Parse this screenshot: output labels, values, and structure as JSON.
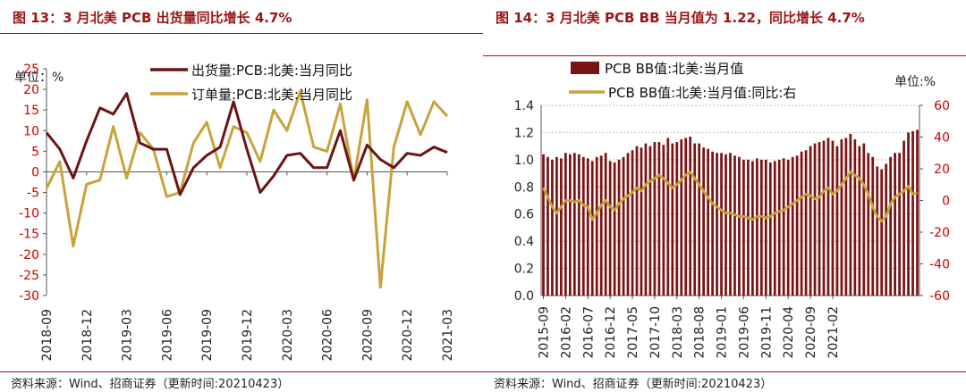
{
  "left": {
    "title": "图 13：3 月北美 PCB 出货量同比增长 4.7%",
    "source": "资料来源：Wind、招商证券（更新时间:20210423）",
    "chart_data": {
      "type": "line",
      "unit_label": "单位：%",
      "ylim": [
        -30,
        25
      ],
      "yticks": [
        "25",
        "20",
        "15",
        "10",
        "5",
        "0",
        "-5",
        "-10",
        "-15",
        "-20",
        "-25",
        "-30"
      ],
      "x": [
        "2018-09",
        "2018-10",
        "2018-11",
        "2018-12",
        "2019-01",
        "2019-02",
        "2019-03",
        "2019-04",
        "2019-05",
        "2019-06",
        "2019-07",
        "2019-08",
        "2019-09",
        "2019-10",
        "2019-11",
        "2019-12",
        "2020-01",
        "2020-02",
        "2020-03",
        "2020-04",
        "2020-05",
        "2020-06",
        "2020-07",
        "2020-08",
        "2020-09",
        "2020-10",
        "2020-11",
        "2020-12",
        "2021-01",
        "2021-02",
        "2021-03"
      ],
      "xtick_labels": [
        "2018-09",
        "2018-12",
        "2019-03",
        "2019-06",
        "2019-09",
        "2019-12",
        "2020-03",
        "2020-06",
        "2020-09",
        "2020-12",
        "2021-03"
      ],
      "series": [
        {
          "name": "出货量:PCB:北美:当月同比",
          "color": "#6b1414",
          "values": [
            9.5,
            5.5,
            -1.5,
            7.5,
            15.5,
            14,
            19,
            7,
            5.5,
            5.5,
            -5.5,
            1,
            4,
            6,
            17,
            5.5,
            -5,
            -1,
            4,
            4.5,
            1,
            1,
            10,
            -2,
            6.5,
            3,
            1,
            4.5,
            4,
            6,
            4.7
          ]
        },
        {
          "name": "订单量:PCB:北美:当月同比",
          "color": "#c8a33c",
          "values": [
            -4,
            2.5,
            -18,
            -3,
            -2,
            11,
            -1.5,
            9.5,
            5.5,
            -6,
            -5,
            7,
            12,
            1,
            11,
            9.5,
            2.5,
            15,
            10,
            19.5,
            6,
            5,
            16.5,
            -2,
            17.5,
            -28,
            6,
            17,
            9,
            17,
            13.5
          ]
        }
      ]
    }
  },
  "right": {
    "title": "图 14：3 月北美 PCB BB 当月值为 1.22，同比增长 4.7%",
    "source": "资料来源：Wind、招商证券（更新时间:20210423）",
    "chart_data": {
      "type": "bar",
      "unit_label": "单位:%",
      "ylim_left": [
        0,
        1.4
      ],
      "yticks_left": [
        "1.4",
        "1.2",
        "1.0",
        "0.8",
        "0.6",
        "0.4",
        "0.2",
        "0.0"
      ],
      "ylim_right": [
        -60,
        60
      ],
      "yticks_right": [
        "60",
        "40",
        "20",
        "0",
        "-20",
        "-40",
        "-60"
      ],
      "xtick_labels": [
        "2015-09",
        "2016-02",
        "2016-07",
        "2016-12",
        "2017-05",
        "2017-10",
        "2018-03",
        "2018-08",
        "2019-01",
        "2019-06",
        "2019-11",
        "2020-04",
        "2020-09",
        "2021-02"
      ],
      "series": [
        {
          "name": "PCB BB值:北美:当月值",
          "color": "#7a1414",
          "axis": "left",
          "values": [
            1.04,
            1.02,
            1.0,
            1.02,
            1.01,
            1.05,
            1.04,
            1.05,
            1.04,
            1.02,
            1.01,
            0.99,
            1.02,
            1.03,
            1.05,
            0.99,
            0.98,
            1.0,
            1.02,
            1.05,
            1.07,
            1.1,
            1.09,
            1.12,
            1.1,
            1.13,
            1.13,
            1.11,
            1.16,
            1.12,
            1.13,
            1.15,
            1.16,
            1.17,
            1.12,
            1.12,
            1.09,
            1.08,
            1.06,
            1.05,
            1.05,
            1.04,
            1.05,
            1.03,
            1.02,
            1.0,
            1.0,
            0.99,
            1.01,
            1.0,
            1.0,
            0.98,
            0.99,
            1.0,
            1.01,
            1.0,
            1.02,
            1.03,
            1.06,
            1.07,
            1.1,
            1.12,
            1.13,
            1.14,
            1.16,
            1.14,
            1.1,
            1.15,
            1.16,
            1.19,
            1.15,
            1.1,
            1.12,
            1.05,
            1.02,
            0.95,
            0.93,
            0.97,
            1.02,
            1.05,
            1.05,
            1.14,
            1.2,
            1.21,
            1.22
          ]
        },
        {
          "name": "PCB BB值:北美:当月值:同比:右",
          "color": "#c8a33c",
          "axis": "right",
          "values": [
            8,
            2,
            -4,
            -8,
            -4,
            0,
            0,
            -1,
            0,
            -3,
            -4,
            -12,
            -8,
            -3,
            0,
            -4,
            -6,
            -2,
            1,
            3,
            5,
            8,
            6,
            10,
            12,
            14,
            16,
            14,
            11,
            8,
            10,
            13,
            16,
            18,
            14,
            10,
            6,
            2,
            -2,
            -4,
            -6,
            -8,
            -8,
            -9,
            -10,
            -10,
            -11,
            -12,
            -10,
            -10,
            -11,
            -10,
            -8,
            -7,
            -6,
            -4,
            -2,
            0,
            2,
            4,
            3,
            1,
            2,
            6,
            8,
            4,
            6,
            10,
            14,
            18,
            16,
            14,
            10,
            4,
            -4,
            -10,
            -13,
            -10,
            -2,
            2,
            4,
            6,
            9,
            4,
            4.7
          ]
        }
      ]
    }
  }
}
